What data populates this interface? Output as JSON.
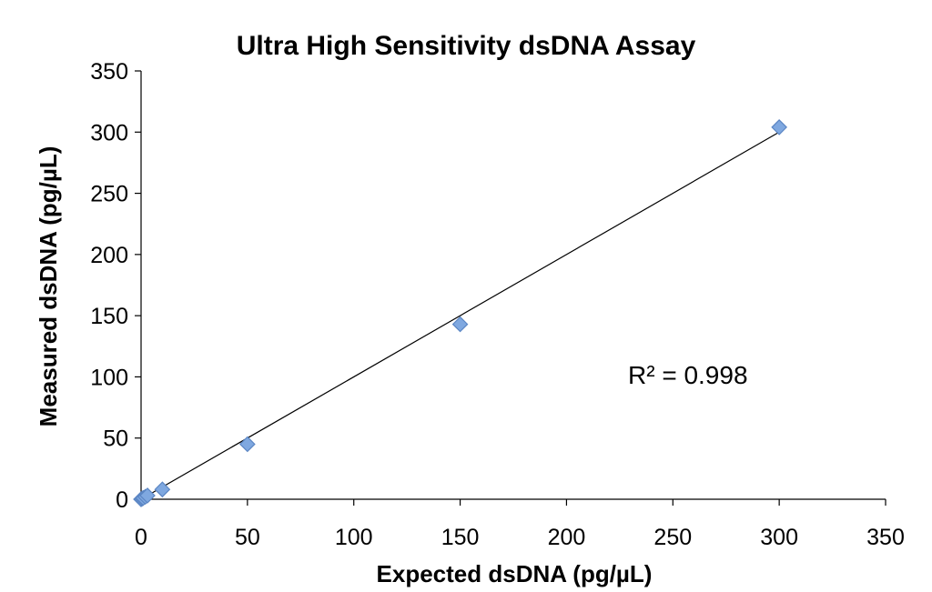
{
  "chart_data": {
    "type": "scatter",
    "title": "Ultra High Sensitivity dsDNA Assay",
    "xlabel": "Expected dsDNA (pg/µL)",
    "ylabel": "Measured dsDNA (pg/µL)",
    "xlim": [
      0,
      350
    ],
    "ylim": [
      0,
      350
    ],
    "xticks": [
      0,
      50,
      100,
      150,
      200,
      250,
      300,
      350
    ],
    "yticks": [
      0,
      50,
      100,
      150,
      200,
      250,
      300,
      350
    ],
    "grid": false,
    "legend": "none",
    "series": [
      {
        "color": "#7FA8E0",
        "marker": "diamond",
        "x": [
          0,
          0.5,
          1,
          2,
          3,
          10,
          50,
          150,
          300
        ],
        "y": [
          0,
          0.5,
          1,
          2,
          3,
          8,
          45,
          143,
          304
        ]
      }
    ],
    "trendline": {
      "type": "linear",
      "x": [
        0,
        300
      ],
      "y": [
        0,
        300
      ]
    },
    "annotations": [
      {
        "text": "R² = 0.998"
      }
    ]
  }
}
